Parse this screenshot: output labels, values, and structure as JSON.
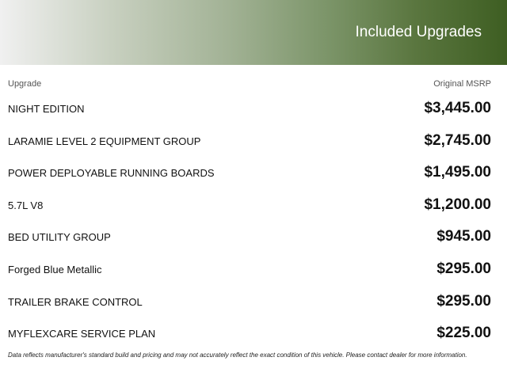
{
  "header": {
    "title": "Included Upgrades",
    "gradient_start": "#f0f0f0",
    "gradient_end": "#3e5e22"
  },
  "columns": {
    "upgrade": "Upgrade",
    "msrp": "Original MSRP"
  },
  "upgrades": [
    {
      "name": "NIGHT EDITION",
      "price": "$3,445.00"
    },
    {
      "name": "LARAMIE LEVEL 2 EQUIPMENT GROUP",
      "price": "$2,745.00"
    },
    {
      "name": "POWER DEPLOYABLE RUNNING BOARDS",
      "price": "$1,495.00"
    },
    {
      "name": "5.7L V8",
      "price": "$1,200.00"
    },
    {
      "name": "BED UTILITY GROUP",
      "price": "$945.00"
    },
    {
      "name": "Forged Blue Metallic",
      "price": "$295.00"
    },
    {
      "name": "TRAILER BRAKE CONTROL",
      "price": "$295.00"
    },
    {
      "name": "MYFLEXCARE SERVICE PLAN",
      "price": "$225.00"
    }
  ],
  "disclaimer": "Data reflects manufacturer's standard build and pricing and may not accurately reflect the exact condition of this vehicle. Please contact dealer for more information."
}
